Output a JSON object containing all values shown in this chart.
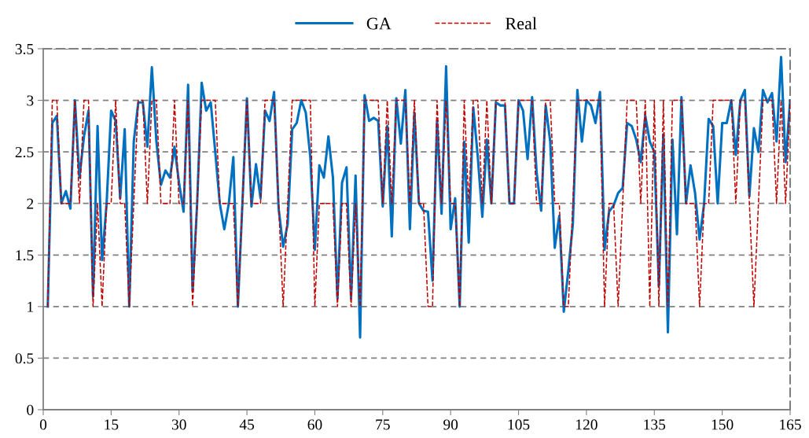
{
  "chart_data": {
    "type": "line",
    "x": [
      1,
      2,
      3,
      4,
      5,
      6,
      7,
      8,
      9,
      10,
      11,
      12,
      13,
      14,
      15,
      16,
      17,
      18,
      19,
      20,
      21,
      22,
      23,
      24,
      25,
      26,
      27,
      28,
      29,
      30,
      31,
      32,
      33,
      34,
      35,
      36,
      37,
      38,
      39,
      40,
      41,
      42,
      43,
      44,
      45,
      46,
      47,
      48,
      49,
      50,
      51,
      52,
      53,
      54,
      55,
      56,
      57,
      58,
      59,
      60,
      61,
      62,
      63,
      64,
      65,
      66,
      67,
      68,
      69,
      70,
      71,
      72,
      73,
      74,
      75,
      76,
      77,
      78,
      79,
      80,
      81,
      82,
      83,
      84,
      85,
      86,
      87,
      88,
      89,
      90,
      91,
      92,
      93,
      94,
      95,
      96,
      97,
      98,
      99,
      100,
      101,
      102,
      103,
      104,
      105,
      106,
      107,
      108,
      109,
      110,
      111,
      112,
      113,
      114,
      115,
      116,
      117,
      118,
      119,
      120,
      121,
      122,
      123,
      124,
      125,
      126,
      127,
      128,
      129,
      130,
      131,
      132,
      133,
      134,
      135,
      136,
      137,
      138,
      139,
      140,
      141,
      142,
      143,
      144,
      145,
      146,
      147,
      148,
      149,
      150,
      151,
      152,
      153,
      154,
      155,
      156,
      157,
      158,
      159,
      160,
      161,
      162,
      163,
      164,
      165
    ],
    "series": [
      {
        "name": "GA",
        "color": "#0070c0",
        "line_style": "solid",
        "values": [
          1.0,
          2.78,
          2.85,
          2.0,
          2.12,
          1.95,
          3.0,
          2.25,
          2.65,
          2.9,
          1.1,
          2.75,
          1.45,
          2.0,
          2.9,
          2.8,
          2.05,
          2.72,
          1.0,
          2.6,
          2.98,
          2.98,
          2.55,
          3.32,
          2.6,
          2.18,
          2.32,
          2.25,
          2.55,
          2.2,
          1.92,
          3.15,
          1.15,
          2.0,
          3.17,
          2.9,
          2.98,
          2.5,
          2.0,
          1.75,
          2.0,
          2.45,
          1.0,
          2.0,
          3.02,
          1.97,
          2.38,
          2.05,
          2.9,
          2.8,
          3.08,
          1.95,
          1.58,
          1.8,
          2.72,
          2.78,
          3.0,
          2.88,
          2.45,
          1.55,
          2.37,
          2.25,
          2.65,
          2.25,
          1.08,
          2.2,
          2.35,
          1.08,
          2.27,
          0.7,
          3.05,
          2.8,
          2.83,
          2.8,
          1.97,
          2.75,
          1.68,
          3.02,
          2.58,
          3.1,
          1.75,
          2.88,
          2.0,
          1.93,
          1.92,
          1.25,
          2.8,
          1.9,
          3.33,
          1.75,
          2.05,
          1.0,
          2.6,
          1.62,
          2.93,
          2.45,
          1.87,
          2.62,
          2.0,
          2.98,
          2.95,
          2.95,
          2.0,
          2.0,
          3.0,
          2.9,
          2.43,
          3.03,
          2.3,
          1.93,
          2.95,
          2.6,
          1.57,
          1.88,
          0.95,
          1.35,
          1.8,
          3.1,
          2.6,
          3.0,
          2.95,
          2.78,
          3.08,
          1.55,
          1.92,
          1.98,
          2.1,
          2.15,
          2.78,
          2.75,
          2.62,
          2.4,
          2.85,
          2.6,
          2.5,
          1.2,
          2.67,
          0.75,
          2.62,
          1.7,
          3.03,
          2.0,
          2.37,
          2.1,
          1.65,
          2.0,
          2.82,
          2.75,
          2.0,
          2.78,
          2.78,
          3.0,
          2.47,
          3.0,
          3.1,
          2.07,
          2.73,
          2.5,
          3.1,
          2.98,
          3.07,
          2.6,
          3.42,
          2.4,
          3.0
        ]
      },
      {
        "name": "Real",
        "color": "#c00000",
        "line_style": "dashed",
        "values": [
          1,
          3,
          3,
          2,
          2,
          2,
          3,
          2,
          3,
          3,
          1,
          2,
          1,
          2,
          2,
          3,
          2,
          2,
          1,
          2,
          3,
          3,
          2,
          3,
          3,
          2,
          2,
          2,
          3,
          2,
          2,
          3,
          1,
          2,
          3,
          3,
          3,
          3,
          2,
          2,
          2,
          2,
          1,
          2,
          3,
          2,
          2,
          2,
          3,
          3,
          3,
          2,
          1,
          2,
          3,
          3,
          3,
          3,
          3,
          1,
          2,
          2,
          2,
          2,
          1,
          2,
          2,
          1,
          2,
          1,
          3,
          3,
          3,
          3,
          2,
          3,
          2,
          3,
          3,
          3,
          2,
          3,
          2,
          2,
          1,
          1,
          3,
          2,
          3,
          2,
          2,
          1,
          3,
          2,
          3,
          3,
          2,
          3,
          2,
          3,
          3,
          3,
          2,
          2,
          3,
          3,
          3,
          3,
          2,
          2,
          3,
          3,
          2,
          2,
          1,
          1,
          2,
          3,
          3,
          3,
          3,
          3,
          3,
          1,
          2,
          2,
          1,
          2,
          3,
          3,
          3,
          2,
          3,
          1,
          3,
          1,
          3,
          1,
          3,
          3,
          3,
          2,
          2,
          2,
          1,
          2,
          2,
          3,
          3,
          3,
          3,
          3,
          2,
          3,
          3,
          2,
          1,
          2,
          3,
          3,
          3,
          2,
          3,
          2,
          3
        ]
      }
    ],
    "xlim": [
      0,
      165
    ],
    "xticks": [
      0,
      15,
      30,
      45,
      60,
      75,
      90,
      105,
      120,
      135,
      150,
      165
    ],
    "ylim": [
      0,
      3.5
    ],
    "yticks": [
      0,
      0.5,
      1,
      1.5,
      2,
      2.5,
      3,
      3.5
    ],
    "grid": "y",
    "legend": "top",
    "marker": "none"
  }
}
